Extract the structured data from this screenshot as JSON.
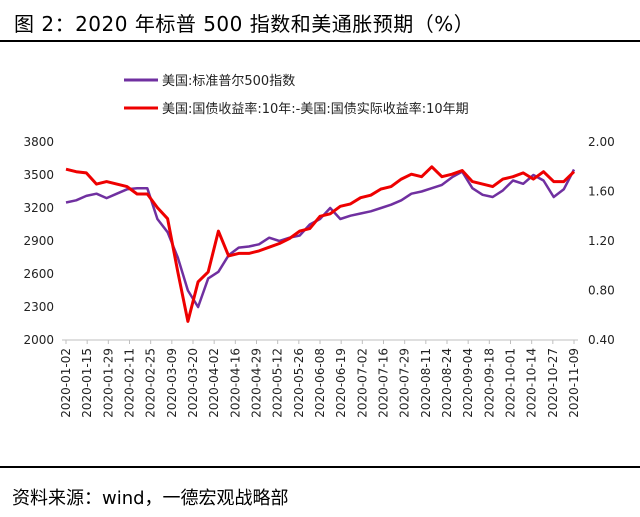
{
  "figure": {
    "title": "图 2：2020 年标普 500 指数和美通胀预期（%）",
    "source": "资料来源：wind，一德宏观战略部"
  },
  "chart_data": {
    "type": "line",
    "x_ticks": [
      "2020-01-02",
      "2020-01-15",
      "2020-01-29",
      "2020-02-11",
      "2020-02-25",
      "2020-03-09",
      "2020-03-20",
      "2020-04-02",
      "2020-04-16",
      "2020-04-29",
      "2020-05-12",
      "2020-05-26",
      "2020-06-08",
      "2020-06-19",
      "2020-07-02",
      "2020-07-16",
      "2020-07-29",
      "2020-08-11",
      "2020-08-24",
      "2020-09-04",
      "2020-09-18",
      "2020-10-01",
      "2020-10-14",
      "2020-10-27",
      "2020-11-09"
    ],
    "y_left": {
      "range": [
        2000,
        3800
      ],
      "ticks": [
        2000,
        2300,
        2600,
        2900,
        3200,
        3500,
        3800
      ]
    },
    "y_right": {
      "range": [
        0.4,
        2.0
      ],
      "ticks": [
        "0.40",
        "0.80",
        "1.20",
        "1.60",
        "2.00"
      ]
    },
    "legend_position": "top-left",
    "grid": false,
    "series": [
      {
        "name": "美国:标准普尔500指数",
        "color": "#7030a0",
        "axis": "left",
        "values": [
          3250,
          3270,
          3310,
          3330,
          3290,
          3330,
          3370,
          3380,
          3380,
          3100,
          2980,
          2750,
          2450,
          2300,
          2560,
          2620,
          2770,
          2840,
          2850,
          2870,
          2930,
          2900,
          2930,
          2950,
          3050,
          3100,
          3200,
          3100,
          3130,
          3150,
          3170,
          3200,
          3230,
          3270,
          3330,
          3350,
          3380,
          3410,
          3480,
          3530,
          3380,
          3320,
          3300,
          3360,
          3450,
          3420,
          3500,
          3450,
          3300,
          3370,
          3550
        ]
      },
      {
        "name": "美国:国债收益率:10年:-美国:国债实际收益率:10年期",
        "color": "#ee0000",
        "axis": "right",
        "values": [
          1.78,
          1.76,
          1.75,
          1.66,
          1.68,
          1.66,
          1.64,
          1.58,
          1.58,
          1.47,
          1.38,
          0.95,
          0.55,
          0.87,
          0.95,
          1.28,
          1.08,
          1.1,
          1.1,
          1.12,
          1.15,
          1.18,
          1.22,
          1.28,
          1.3,
          1.4,
          1.42,
          1.48,
          1.5,
          1.55,
          1.57,
          1.62,
          1.64,
          1.7,
          1.74,
          1.72,
          1.8,
          1.72,
          1.74,
          1.77,
          1.68,
          1.66,
          1.64,
          1.7,
          1.72,
          1.75,
          1.7,
          1.76,
          1.68,
          1.68,
          1.76
        ]
      }
    ]
  }
}
